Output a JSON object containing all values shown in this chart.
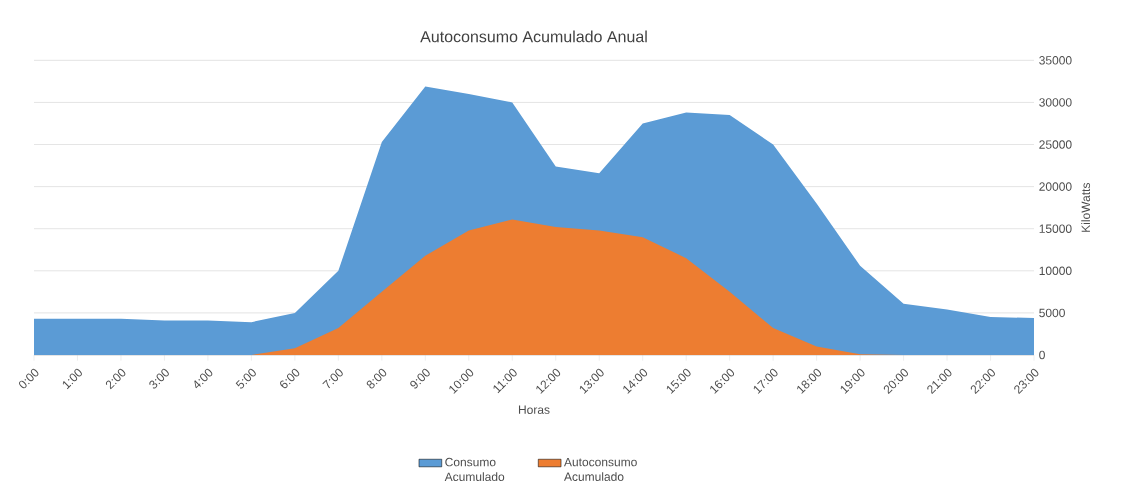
{
  "chart_data": {
    "type": "area",
    "title": "Autoconsumo Acumulado Anual",
    "xlabel": "Horas",
    "ylabel": "KiloWatts",
    "categories": [
      "0:00",
      "1:00",
      "2:00",
      "3:00",
      "4:00",
      "5:00",
      "6:00",
      "7:00",
      "8:00",
      "9:00",
      "10:00",
      "11:00",
      "12:00",
      "13:00",
      "14:00",
      "15:00",
      "16:00",
      "17:00",
      "18:00",
      "19:00",
      "20:00",
      "21:00",
      "22:00",
      "23:00"
    ],
    "series": [
      {
        "name": "Consumo Acumulado",
        "color": "#5b9bd5",
        "values": [
          4300,
          4300,
          4300,
          4100,
          4100,
          3900,
          5000,
          10000,
          25300,
          31900,
          31000,
          30000,
          22400,
          21600,
          27500,
          28800,
          28500,
          25000,
          18000,
          10600,
          6100,
          5400,
          4500,
          4400
        ]
      },
      {
        "name": "Autoconsumo Acumulado",
        "color": "#ed7d31",
        "values": [
          0,
          0,
          0,
          0,
          0,
          0,
          800,
          3200,
          7500,
          11800,
          14800,
          16100,
          15200,
          14800,
          14000,
          11500,
          7500,
          3200,
          1000,
          100,
          0,
          0,
          0,
          0
        ]
      }
    ],
    "ylim": [
      0,
      35000
    ],
    "yticks": [
      0,
      5000,
      10000,
      15000,
      20000,
      25000,
      30000,
      35000
    ],
    "grid": "y",
    "legend": "bottom"
  }
}
